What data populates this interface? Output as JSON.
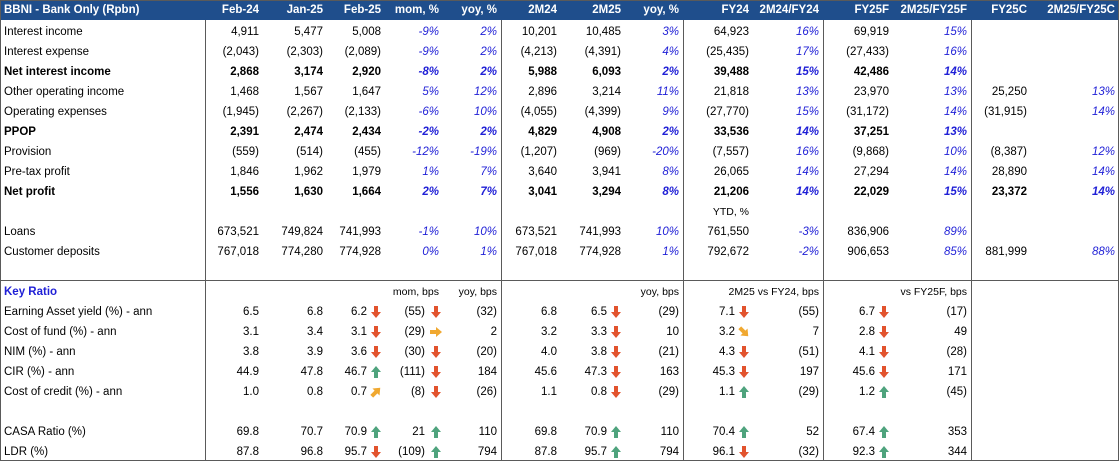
{
  "header": {
    "title": "BBNI - Bank Only (Rpbn)",
    "cols": [
      "Feb-24",
      "Jan-25",
      "Feb-25",
      "mom, %",
      "yoy, %",
      "2M24",
      "2M25",
      "yoy, %",
      "FY24",
      "2M24/FY24",
      "FY25F",
      "2M25/FY25F",
      "FY25C",
      "2M25/FY25C"
    ]
  },
  "pl_rows": [
    {
      "label": "Interest income",
      "bold": false,
      "vals": [
        "4,911",
        "5,477",
        "5,008",
        "-9%",
        "2%",
        "10,201",
        "10,485",
        "3%",
        "64,923",
        "16%",
        "69,919",
        "15%",
        "",
        ""
      ]
    },
    {
      "label": "Interest expense",
      "bold": false,
      "vals": [
        "(2,043)",
        "(2,303)",
        "(2,089)",
        "-9%",
        "2%",
        "(4,213)",
        "(4,391)",
        "4%",
        "(25,435)",
        "17%",
        "(27,433)",
        "16%",
        "",
        ""
      ]
    },
    {
      "label": "Net interest income",
      "bold": true,
      "vals": [
        "2,868",
        "3,174",
        "2,920",
        "-8%",
        "2%",
        "5,988",
        "6,093",
        "2%",
        "39,488",
        "15%",
        "42,486",
        "14%",
        "",
        ""
      ]
    },
    {
      "label": "Other operating income",
      "bold": false,
      "vals": [
        "1,468",
        "1,567",
        "1,647",
        "5%",
        "12%",
        "2,896",
        "3,214",
        "11%",
        "21,818",
        "13%",
        "23,970",
        "13%",
        "25,250",
        "13%"
      ]
    },
    {
      "label": "Operating expenses",
      "bold": false,
      "vals": [
        "(1,945)",
        "(2,267)",
        "(2,133)",
        "-6%",
        "10%",
        "(4,055)",
        "(4,399)",
        "9%",
        "(27,770)",
        "15%",
        "(31,172)",
        "14%",
        "(31,915)",
        "14%"
      ]
    },
    {
      "label": "PPOP",
      "bold": true,
      "vals": [
        "2,391",
        "2,474",
        "2,434",
        "-2%",
        "2%",
        "4,829",
        "4,908",
        "2%",
        "33,536",
        "14%",
        "37,251",
        "13%",
        "",
        ""
      ]
    },
    {
      "label": "Provision",
      "bold": false,
      "vals": [
        "(559)",
        "(514)",
        "(455)",
        "-12%",
        "-19%",
        "(1,207)",
        "(969)",
        "-20%",
        "(7,557)",
        "16%",
        "(9,868)",
        "10%",
        "(8,387)",
        "12%"
      ]
    },
    {
      "label": "Pre-tax profit",
      "bold": false,
      "vals": [
        "1,846",
        "1,962",
        "1,979",
        "1%",
        "7%",
        "3,640",
        "3,941",
        "8%",
        "26,065",
        "14%",
        "27,294",
        "14%",
        "28,890",
        "14%"
      ]
    },
    {
      "label": "Net profit",
      "bold": true,
      "vals": [
        "1,556",
        "1,630",
        "1,664",
        "2%",
        "7%",
        "3,041",
        "3,294",
        "8%",
        "21,206",
        "14%",
        "22,029",
        "15%",
        "23,372",
        "14%"
      ]
    }
  ],
  "ytd_label": "YTD, %",
  "bs_rows": [
    {
      "label": "Loans",
      "vals": [
        "673,521",
        "749,824",
        "741,993",
        "-1%",
        "10%",
        "673,521",
        "741,993",
        "10%",
        "761,550",
        "-3%",
        "836,906",
        "89%",
        "",
        ""
      ]
    },
    {
      "label": "Customer deposits",
      "vals": [
        "767,018",
        "774,280",
        "774,928",
        "0%",
        "1%",
        "767,018",
        "774,928",
        "1%",
        "792,672",
        "-2%",
        "906,653",
        "85%",
        "881,999",
        "88%"
      ]
    }
  ],
  "ratio_header": {
    "title": "Key Ratio",
    "mom_bps": "mom, bps",
    "yoy_bps": "yoy, bps",
    "yoy_bps2": "yoy, bps",
    "vs_fy24": "2M25 vs FY24, bps",
    "vs_fy25f": "vs FY25F, bps"
  },
  "ratio_rows": [
    {
      "label": "Earning Asset yield (%) - ann",
      "feb24": "6.5",
      "jan25": "6.8",
      "feb25": "6.2",
      "ic1": "down",
      "mom": "(55)",
      "ic2": "down",
      "yoy": "(32)",
      "m24": "6.8",
      "m25": "6.5",
      "ic3": "down",
      "yoy2": "(29)",
      "fy24": "7.1",
      "ic4": "down",
      "d24": "(55)",
      "fy25f": "6.7",
      "ic5": "down",
      "d25": "(17)"
    },
    {
      "label": "Cost of fund (%) - ann",
      "feb24": "3.1",
      "jan25": "3.4",
      "feb25": "3.1",
      "ic1": "down",
      "mom": "(29)",
      "ic2": "flat",
      "yoy": "2",
      "m24": "3.2",
      "m25": "3.3",
      "ic3": "down",
      "yoy2": "10",
      "fy24": "3.2",
      "ic4": "flatdown",
      "d24": "7",
      "fy25f": "2.8",
      "ic5": "down",
      "d25": "49"
    },
    {
      "label": "NIM (%) - ann",
      "feb24": "3.8",
      "jan25": "3.9",
      "feb25": "3.6",
      "ic1": "down",
      "mom": "(30)",
      "ic2": "down",
      "yoy": "(20)",
      "m24": "4.0",
      "m25": "3.8",
      "ic3": "down",
      "yoy2": "(21)",
      "fy24": "4.3",
      "ic4": "down",
      "d24": "(51)",
      "fy25f": "4.1",
      "ic5": "down",
      "d25": "(28)"
    },
    {
      "label": "CIR (%) - ann",
      "feb24": "44.9",
      "jan25": "47.8",
      "feb25": "46.7",
      "ic1": "up",
      "mom": "(111)",
      "ic2": "down",
      "yoy": "184",
      "m24": "45.6",
      "m25": "47.3",
      "ic3": "down",
      "yoy2": "163",
      "fy24": "45.3",
      "ic4": "down",
      "d24": "197",
      "fy25f": "45.6",
      "ic5": "down",
      "d25": "171"
    },
    {
      "label": "Cost of credit (%) - ann",
      "feb24": "1.0",
      "jan25": "0.8",
      "feb25": "0.7",
      "ic1": "flatup",
      "mom": "(8)",
      "ic2": "down",
      "yoy": "(26)",
      "m24": "1.1",
      "m25": "0.8",
      "ic3": "down",
      "yoy2": "(29)",
      "fy24": "1.1",
      "ic4": "up",
      "d24": "(29)",
      "fy25f": "1.2",
      "ic5": "up",
      "d25": "(45)"
    }
  ],
  "ratio_rows2": [
    {
      "label": "CASA Ratio (%)",
      "feb24": "69.8",
      "jan25": "70.7",
      "feb25": "70.9",
      "ic1": "up",
      "mom": "21",
      "ic2": "up",
      "yoy": "110",
      "m24": "69.8",
      "m25": "70.9",
      "ic3": "up",
      "yoy2": "110",
      "fy24": "70.4",
      "ic4": "up",
      "d24": "52",
      "fy25f": "67.4",
      "ic5": "up",
      "d25": "353"
    },
    {
      "label": "LDR (%)",
      "feb24": "87.8",
      "jan25": "96.8",
      "feb25": "95.7",
      "ic1": "down",
      "mom": "(109)",
      "ic2": "up",
      "yoy": "794",
      "m24": "87.8",
      "m25": "95.7",
      "ic3": "up",
      "yoy2": "794",
      "fy24": "96.1",
      "ic4": "down",
      "d24": "(32)",
      "fy25f": "92.3",
      "ic5": "up",
      "d25": "344"
    }
  ],
  "colors": {
    "header_bg": "#1f4e8c",
    "blue_text": "#1f1fd6",
    "arrow_red": "#e2532d",
    "arrow_green": "#4fa37d",
    "arrow_amber": "#f0a830"
  }
}
